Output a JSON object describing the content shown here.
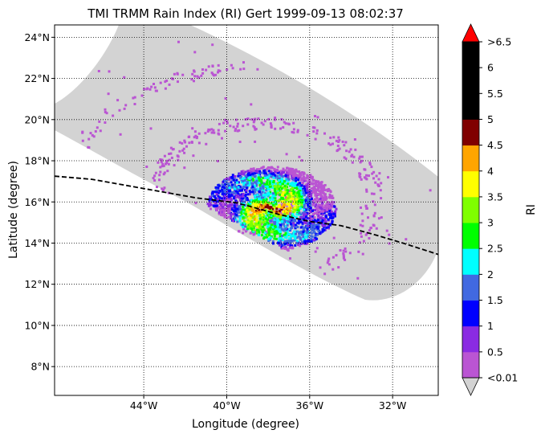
{
  "chart_data": {
    "type": "heatmap",
    "title": "TMI TRMM Rain Index (RI) Gert 1999-09-13 08:02:37",
    "xlabel": "Longitude (degree)",
    "ylabel": "Latitude (degree)",
    "xlim": [
      -48.3,
      -29.8
    ],
    "ylim": [
      6.6,
      24.6
    ],
    "x_ticks": [
      {
        "value": -44,
        "label": "44°W"
      },
      {
        "value": -40,
        "label": "40°W"
      },
      {
        "value": -36,
        "label": "36°W"
      },
      {
        "value": -32,
        "label": "32°W"
      }
    ],
    "y_ticks": [
      {
        "value": 8,
        "label": "8°N"
      },
      {
        "value": 10,
        "label": "10°N"
      },
      {
        "value": 12,
        "label": "12°N"
      },
      {
        "value": 14,
        "label": "14°N"
      },
      {
        "value": 16,
        "label": "16°N"
      },
      {
        "value": 18,
        "label": "18°N"
      },
      {
        "value": 20,
        "label": "20°N"
      },
      {
        "value": 22,
        "label": "22°N"
      },
      {
        "value": 24,
        "label": "24°N"
      }
    ],
    "grid": true,
    "swath_color": "#d3d3d3",
    "track": {
      "style": "dashed",
      "color": "#000000",
      "points": [
        [
          -48.3,
          17.25
        ],
        [
          -46.5,
          17.1
        ],
        [
          -44,
          16.65
        ],
        [
          -41.5,
          16.2
        ],
        [
          -39.5,
          15.95
        ],
        [
          -37.5,
          15.4
        ],
        [
          -36,
          15.05
        ],
        [
          -34.5,
          14.85
        ],
        [
          -33,
          14.45
        ],
        [
          -31.5,
          14.0
        ],
        [
          -29.8,
          13.45
        ]
      ]
    },
    "storm_center": [
      -37.5,
      16.2
    ],
    "colorbar": {
      "label": "RI",
      "extend_max_color": "#ff0000",
      "extend_min_color": "#d3d3d3",
      "bins": [
        {
          "color": "#ba55d3"
        },
        {
          "color": "#8a2be2"
        },
        {
          "color": "#0000ff"
        },
        {
          "color": "#4169e1"
        },
        {
          "color": "#00ffff"
        },
        {
          "color": "#00ff00"
        },
        {
          "color": "#7fff00"
        },
        {
          "color": "#ffff00"
        },
        {
          "color": "#ffa500"
        },
        {
          "color": "#800000"
        },
        {
          "color": "#000000"
        },
        {
          "color": "#000000"
        },
        {
          "color": "#000000"
        }
      ],
      "tick_labels": [
        "<0.01",
        "0.5",
        "1",
        "1.5",
        "2",
        "2.5",
        "3",
        "3.5",
        "4",
        "4.5",
        "5",
        "5.5",
        "6",
        ">6.5"
      ]
    }
  }
}
